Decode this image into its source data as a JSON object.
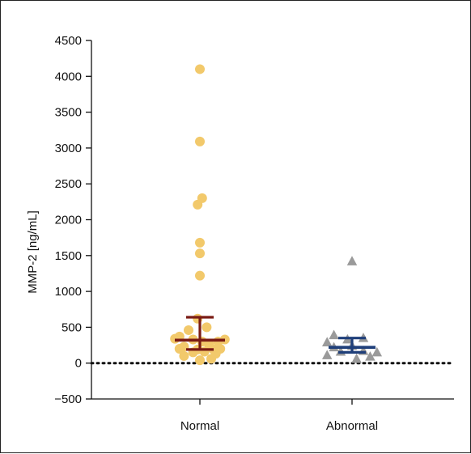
{
  "chart_data": {
    "type": "scatter",
    "ylabel": "MMP-2 [ng/mL]",
    "xlabel": "",
    "title": "",
    "categories": [
      "Normal",
      "Abnormal"
    ],
    "ylim": [
      -500,
      4500
    ],
    "yticks": [
      -500,
      0,
      500,
      1000,
      1500,
      2000,
      2500,
      3000,
      3500,
      4000,
      4500
    ],
    "reference_line": {
      "y": 0,
      "style": "dotted"
    },
    "series": [
      {
        "category": "Normal",
        "marker": "circle",
        "color": "#f2c96b",
        "points": [
          {
            "x": -0.55,
            "y": 340
          },
          {
            "x": -0.45,
            "y": 370
          },
          {
            "x": -0.45,
            "y": 200
          },
          {
            "x": -0.35,
            "y": 230
          },
          {
            "x": -0.35,
            "y": 100
          },
          {
            "x": -0.25,
            "y": 460
          },
          {
            "x": -0.15,
            "y": 330
          },
          {
            "x": -0.15,
            "y": 150
          },
          {
            "x": -0.05,
            "y": 620
          },
          {
            "x": -0.05,
            "y": 190
          },
          {
            "x": 0.0,
            "y": 40
          },
          {
            "x": 0.05,
            "y": 300
          },
          {
            "x": 0.1,
            "y": 160
          },
          {
            "x": 0.15,
            "y": 500
          },
          {
            "x": 0.2,
            "y": 260
          },
          {
            "x": 0.25,
            "y": 60
          },
          {
            "x": 0.3,
            "y": 190
          },
          {
            "x": 0.35,
            "y": 130
          },
          {
            "x": 0.4,
            "y": 300
          },
          {
            "x": 0.45,
            "y": 200
          },
          {
            "x": 0.55,
            "y": 330
          },
          {
            "x": 0.0,
            "y": 1220
          },
          {
            "x": 0.0,
            "y": 1530
          },
          {
            "x": 0.0,
            "y": 1680
          },
          {
            "x": -0.05,
            "y": 2210
          },
          {
            "x": 0.05,
            "y": 2300
          },
          {
            "x": 0.0,
            "y": 3090
          },
          {
            "x": 0.0,
            "y": 4100
          }
        ],
        "median": 320,
        "interval": [
          190,
          640
        ],
        "bar_color": "#7a1b14"
      },
      {
        "category": "Abnormal",
        "marker": "triangle",
        "color": "#9a9a9a",
        "points": [
          {
            "x": -0.55,
            "y": 290
          },
          {
            "x": -0.55,
            "y": 110
          },
          {
            "x": -0.4,
            "y": 390
          },
          {
            "x": -0.4,
            "y": 220
          },
          {
            "x": -0.25,
            "y": 160
          },
          {
            "x": -0.1,
            "y": 330
          },
          {
            "x": 0.0,
            "y": 1420
          },
          {
            "x": 0.0,
            "y": 240
          },
          {
            "x": 0.1,
            "y": 60
          },
          {
            "x": 0.25,
            "y": 170
          },
          {
            "x": 0.25,
            "y": 350
          },
          {
            "x": 0.4,
            "y": 90
          },
          {
            "x": 0.55,
            "y": 150
          }
        ],
        "median": 220,
        "interval": [
          150,
          350
        ],
        "bar_color": "#1f3f7a"
      }
    ]
  }
}
